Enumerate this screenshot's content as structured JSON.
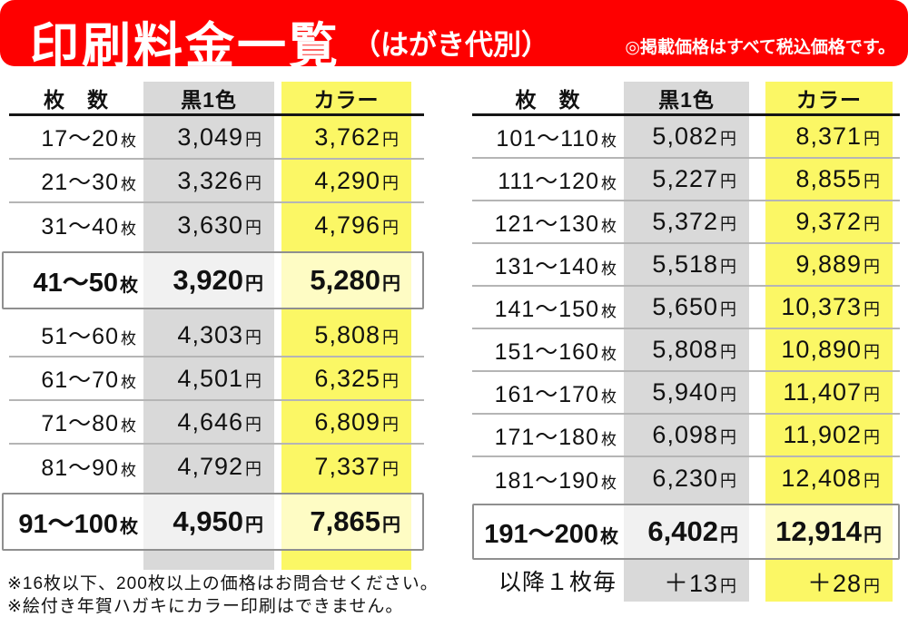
{
  "header": {
    "title": "印刷料金一覧",
    "subtitle": "（はがき代別）",
    "note": "◎掲載価格はすべて税込価格です。"
  },
  "colors": {
    "header_red": "#fe0000",
    "black_column_bg": "#d9d9d9",
    "color_column_bg": "#fbf765",
    "row_divider": "#b5b5b5",
    "header_divider": "#151515",
    "highlight_border": "#8f8f8f",
    "text": "#111111"
  },
  "tables": [
    {
      "id": "left",
      "unit": "円",
      "columns": {
        "qty": "枚　数",
        "black": "黒1色",
        "color": "カラー"
      },
      "rows": [
        {
          "qty": "17〜20",
          "qty_unit": "枚",
          "black": "3,049",
          "color": "3,762",
          "highlight": false
        },
        {
          "qty": "21〜30",
          "qty_unit": "枚",
          "black": "3,326",
          "color": "4,290",
          "highlight": false
        },
        {
          "qty": "31〜40",
          "qty_unit": "枚",
          "black": "3,630",
          "color": "4,796",
          "highlight": false
        },
        {
          "qty": "41〜50",
          "qty_unit": "枚",
          "black": "3,920",
          "color": "5,280",
          "highlight": true
        },
        {
          "qty": "51〜60",
          "qty_unit": "枚",
          "black": "4,303",
          "color": "5,808",
          "highlight": false
        },
        {
          "qty": "61〜70",
          "qty_unit": "枚",
          "black": "4,501",
          "color": "6,325",
          "highlight": false
        },
        {
          "qty": "71〜80",
          "qty_unit": "枚",
          "black": "4,646",
          "color": "6,809",
          "highlight": false
        },
        {
          "qty": "81〜90",
          "qty_unit": "枚",
          "black": "4,792",
          "color": "7,337",
          "highlight": false
        },
        {
          "qty": "91〜100",
          "qty_unit": "枚",
          "black": "4,950",
          "color": "7,865",
          "highlight": true
        }
      ]
    },
    {
      "id": "right",
      "unit": "円",
      "columns": {
        "qty": "枚　数",
        "black": "黒1色",
        "color": "カラー"
      },
      "rows": [
        {
          "qty": "101〜110",
          "qty_unit": "枚",
          "black": "5,082",
          "color": "8,371",
          "highlight": false
        },
        {
          "qty": "111〜120",
          "qty_unit": "枚",
          "black": "5,227",
          "color": "8,855",
          "highlight": false
        },
        {
          "qty": "121〜130",
          "qty_unit": "枚",
          "black": "5,372",
          "color": "9,372",
          "highlight": false
        },
        {
          "qty": "131〜140",
          "qty_unit": "枚",
          "black": "5,518",
          "color": "9,889",
          "highlight": false
        },
        {
          "qty": "141〜150",
          "qty_unit": "枚",
          "black": "5,650",
          "color": "10,373",
          "highlight": false
        },
        {
          "qty": "151〜160",
          "qty_unit": "枚",
          "black": "5,808",
          "color": "10,890",
          "highlight": false
        },
        {
          "qty": "161〜170",
          "qty_unit": "枚",
          "black": "5,940",
          "color": "11,407",
          "highlight": false
        },
        {
          "qty": "171〜180",
          "qty_unit": "枚",
          "black": "6,098",
          "color": "11,902",
          "highlight": false
        },
        {
          "qty": "181〜190",
          "qty_unit": "枚",
          "black": "6,230",
          "color": "12,408",
          "highlight": false
        },
        {
          "qty": "191〜200",
          "qty_unit": "枚",
          "black": "6,402",
          "color": "12,914",
          "highlight": true
        },
        {
          "qty": "以降１枚毎",
          "qty_unit": "",
          "black": "＋13",
          "color": "＋28",
          "highlight": false
        }
      ]
    }
  ],
  "footnotes": [
    "※16枚以下、200枚以上の価格はお問合せください。",
    "※絵付き年賀ハガキにカラー印刷はできません。"
  ]
}
